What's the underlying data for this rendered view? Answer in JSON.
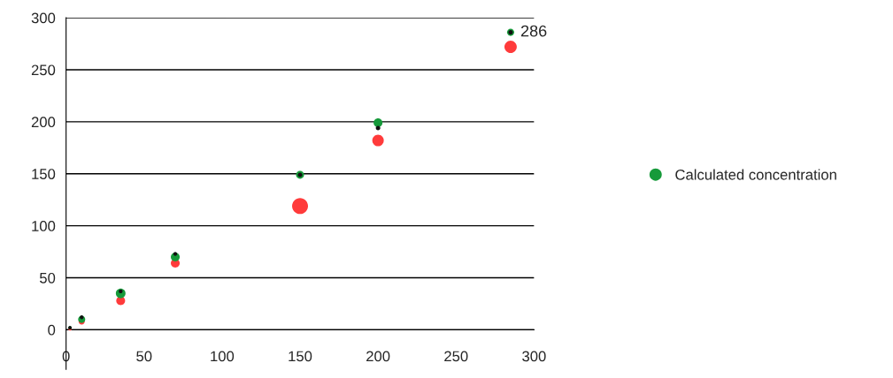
{
  "chart_data": {
    "type": "bubble",
    "xlim": [
      0,
      300
    ],
    "xticks": [
      0,
      50,
      100,
      150,
      200,
      250,
      300
    ],
    "ylim": [
      -38,
      300
    ],
    "yticks": [
      0,
      50,
      100,
      150,
      200,
      250,
      300
    ],
    "grid": "y",
    "legend": "right",
    "marker": "circle",
    "series": [
      {
        "color": "#ff3b3b",
        "x": [
          2.5,
          10,
          35,
          70,
          150,
          200,
          285
        ],
        "values": [
          1,
          8,
          28,
          64,
          119,
          182,
          272
        ],
        "sizes": [
          0.05,
          0.15,
          0.31,
          0.31,
          1,
          0.52,
          0.6
        ]
      },
      {
        "name": "Calculated concentration",
        "color": "#169a3a",
        "x": [
          2.5,
          10,
          35,
          70,
          150,
          200,
          285
        ],
        "values": [
          2,
          10,
          35,
          70,
          149,
          199,
          286
        ],
        "sizes": [
          0.05,
          0.2,
          0.37,
          0.31,
          0.25,
          0.31,
          0.2
        ]
      },
      {
        "color": "#111111",
        "x": [
          2.5,
          10,
          35,
          70,
          150,
          200,
          285
        ],
        "values": [
          2,
          12,
          37,
          73,
          149,
          194,
          286
        ],
        "sizes": [
          0.05,
          0.06,
          0.06,
          0.06,
          0.08,
          0.08,
          0.08
        ]
      }
    ],
    "annotations": [
      {
        "text": "286",
        "x": 285,
        "y": 286
      }
    ]
  }
}
